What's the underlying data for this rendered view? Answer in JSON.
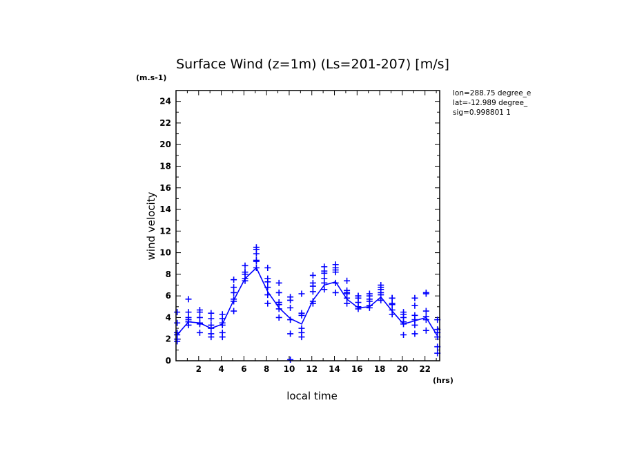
{
  "chart_data": {
    "type": "line",
    "title": "Surface Wind (z=1m) (Ls=201-207) [m/s]",
    "y_unit": "(m.s-1)",
    "x_unit": "(hrs)",
    "xlabel": "local time",
    "ylabel": "wind velocity",
    "xlim": [
      0,
      23.3
    ],
    "ylim": [
      0,
      25
    ],
    "xticks": [
      2,
      4,
      6,
      8,
      10,
      12,
      14,
      16,
      18,
      20,
      22
    ],
    "yticks": [
      0,
      2,
      4,
      6,
      8,
      10,
      12,
      14,
      16,
      18,
      20,
      22,
      24
    ],
    "info": [
      "lon=288.75 degree_e",
      "lat=-12.989 degree_",
      "sig=0.998801 1"
    ],
    "color": "#0000ff",
    "series": [
      {
        "kind": "line",
        "x": [
          0.1,
          1.1,
          2.1,
          3.1,
          4.1,
          5.1,
          6.1,
          7.1,
          8.1,
          9.1,
          10.1,
          11.1,
          12.1,
          13.1,
          14.1,
          15.1,
          16.1,
          17.1,
          18.1,
          19.1,
          20.1,
          21.1,
          22.1,
          23.1
        ],
        "y": [
          2.4,
          3.6,
          3.5,
          3.0,
          3.4,
          5.6,
          7.6,
          8.6,
          6.4,
          4.9,
          3.9,
          3.4,
          5.6,
          7.0,
          7.3,
          5.7,
          4.9,
          5.0,
          5.9,
          4.6,
          3.4,
          3.7,
          4.0,
          2.3
        ]
      },
      {
        "kind": "markers",
        "x": [
          0.1,
          0.1,
          0.1,
          0.1,
          0.1,
          0.1,
          1.1,
          1.1,
          1.1,
          1.1,
          1.1,
          1.1,
          2.1,
          2.1,
          2.1,
          2.1,
          2.1,
          2.1,
          3.1,
          3.1,
          3.1,
          3.1,
          3.1,
          3.1,
          4.1,
          4.1,
          4.1,
          4.1,
          4.1,
          4.1,
          5.1,
          5.1,
          5.1,
          5.1,
          5.1,
          5.1,
          6.1,
          6.1,
          6.1,
          6.1,
          6.1,
          6.1,
          7.1,
          7.1,
          7.1,
          7.1,
          7.1,
          7.1,
          8.1,
          8.1,
          8.1,
          8.1,
          8.1,
          8.1,
          9.1,
          9.1,
          9.1,
          9.1,
          9.1,
          9.1,
          10.1,
          10.1,
          10.1,
          10.1,
          10.1,
          10.1,
          11.1,
          11.1,
          11.1,
          11.1,
          11.1,
          11.1,
          12.1,
          12.1,
          12.1,
          12.1,
          12.1,
          12.1,
          13.1,
          13.1,
          13.1,
          13.1,
          13.1,
          13.1,
          14.1,
          14.1,
          14.1,
          14.1,
          14.1,
          14.1,
          15.1,
          15.1,
          15.1,
          15.1,
          15.1,
          15.1,
          16.1,
          16.1,
          16.1,
          16.1,
          16.1,
          16.1,
          17.1,
          17.1,
          17.1,
          17.1,
          17.1,
          17.1,
          18.1,
          18.1,
          18.1,
          18.1,
          18.1,
          18.1,
          19.1,
          19.1,
          19.1,
          19.1,
          19.1,
          19.1,
          20.1,
          20.1,
          20.1,
          20.1,
          20.1,
          20.1,
          21.1,
          21.1,
          21.1,
          21.1,
          21.1,
          21.1,
          22.1,
          22.1,
          22.1,
          22.1,
          22.1,
          22.1,
          23.1,
          23.1,
          23.1,
          23.1,
          23.1,
          23.1
        ],
        "y": [
          1.8,
          2.0,
          2.4,
          2.6,
          3.5,
          4.5,
          3.3,
          3.6,
          3.8,
          4.0,
          4.5,
          5.7,
          2.6,
          3.4,
          3.5,
          4.0,
          4.5,
          4.7,
          2.2,
          2.5,
          3.0,
          3.3,
          3.9,
          4.4,
          2.2,
          2.6,
          3.3,
          3.5,
          3.9,
          4.3,
          4.6,
          5.5,
          5.7,
          6.3,
          6.8,
          7.5,
          7.4,
          7.6,
          8.0,
          8.2,
          8.2,
          8.8,
          8.6,
          9.2,
          9.3,
          9.9,
          10.3,
          10.5,
          5.3,
          6.1,
          6.8,
          7.3,
          7.6,
          8.6,
          4.0,
          4.8,
          5.2,
          5.4,
          6.3,
          7.2,
          0.1,
          2.5,
          3.8,
          4.9,
          5.6,
          5.9,
          2.2,
          2.6,
          3.0,
          4.2,
          4.4,
          6.2,
          5.3,
          5.5,
          6.4,
          6.9,
          7.2,
          7.9,
          6.6,
          7.2,
          7.6,
          8.1,
          8.3,
          8.7,
          6.3,
          7.2,
          8.2,
          8.4,
          8.6,
          8.9,
          5.3,
          5.8,
          6.2,
          6.3,
          6.5,
          7.4,
          4.8,
          5.0,
          5.4,
          5.8,
          6.0,
          6.0,
          4.9,
          5.1,
          5.5,
          5.7,
          6.0,
          6.2,
          5.6,
          6.1,
          6.3,
          6.6,
          6.8,
          7.0,
          4.3,
          4.7,
          5.2,
          5.3,
          5.8,
          5.8,
          2.4,
          3.4,
          3.6,
          4.0,
          4.3,
          4.5,
          2.5,
          3.3,
          3.8,
          4.2,
          5.1,
          5.8,
          2.8,
          3.8,
          4.1,
          4.6,
          6.2,
          6.3,
          0.7,
          1.3,
          2.2,
          2.6,
          2.9,
          3.8
        ]
      }
    ]
  }
}
